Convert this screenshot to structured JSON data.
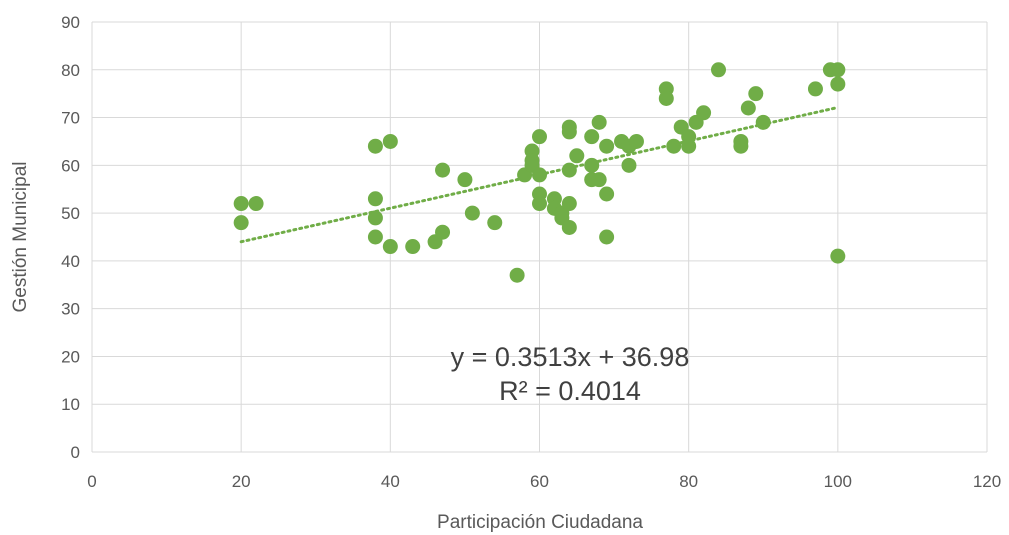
{
  "chart_data": {
    "type": "scatter",
    "title": "",
    "xlabel": "Participación Ciudadana",
    "ylabel": "Gestión Municipal",
    "xlim": [
      0,
      120
    ],
    "ylim": [
      0,
      90
    ],
    "xticks": [
      0,
      20,
      40,
      60,
      80,
      100,
      120
    ],
    "yticks": [
      0,
      10,
      20,
      30,
      40,
      50,
      60,
      70,
      80,
      90
    ],
    "grid": true,
    "legend": "none",
    "colors": {
      "points": "#70AD47",
      "trendline": "#70AD47",
      "grid": "#D9D9D9",
      "text": "#595959"
    },
    "series": [
      {
        "points": [
          [
            20,
            52
          ],
          [
            20,
            48
          ],
          [
            22,
            52
          ],
          [
            38,
            64
          ],
          [
            38,
            53
          ],
          [
            38,
            49
          ],
          [
            38,
            45
          ],
          [
            40,
            65
          ],
          [
            40,
            43
          ],
          [
            43,
            43
          ],
          [
            46,
            44
          ],
          [
            47,
            46
          ],
          [
            47,
            59
          ],
          [
            50,
            57
          ],
          [
            51,
            50
          ],
          [
            54,
            48
          ],
          [
            57,
            37
          ],
          [
            58,
            58
          ],
          [
            59,
            63
          ],
          [
            59,
            61
          ],
          [
            59,
            60
          ],
          [
            60,
            66
          ],
          [
            60,
            58
          ],
          [
            60,
            54
          ],
          [
            60,
            52
          ],
          [
            62,
            53
          ],
          [
            62,
            51
          ],
          [
            63,
            50
          ],
          [
            63,
            49
          ],
          [
            64,
            68
          ],
          [
            64,
            67
          ],
          [
            64,
            59
          ],
          [
            64,
            52
          ],
          [
            64,
            47
          ],
          [
            65,
            62
          ],
          [
            67,
            66
          ],
          [
            67,
            60
          ],
          [
            67,
            57
          ],
          [
            68,
            69
          ],
          [
            68,
            57
          ],
          [
            69,
            64
          ],
          [
            69,
            54
          ],
          [
            69,
            45
          ],
          [
            71,
            65
          ],
          [
            72,
            64
          ],
          [
            72,
            60
          ],
          [
            73,
            65
          ],
          [
            77,
            76
          ],
          [
            77,
            74
          ],
          [
            78,
            64
          ],
          [
            79,
            68
          ],
          [
            80,
            66
          ],
          [
            80,
            64
          ],
          [
            81,
            69
          ],
          [
            82,
            71
          ],
          [
            84,
            80
          ],
          [
            87,
            65
          ],
          [
            87,
            64
          ],
          [
            88,
            72
          ],
          [
            89,
            75
          ],
          [
            90,
            69
          ],
          [
            97,
            76
          ],
          [
            99,
            80
          ],
          [
            100,
            80
          ],
          [
            100,
            77
          ],
          [
            100,
            41
          ]
        ]
      }
    ],
    "trendline": {
      "type": "linear",
      "slope": 0.3513,
      "intercept": 36.98,
      "x_range": [
        20,
        100
      ],
      "equation_label": "y = 0.3513x + 36.98",
      "r2_label": "R² = 0.4014"
    }
  }
}
